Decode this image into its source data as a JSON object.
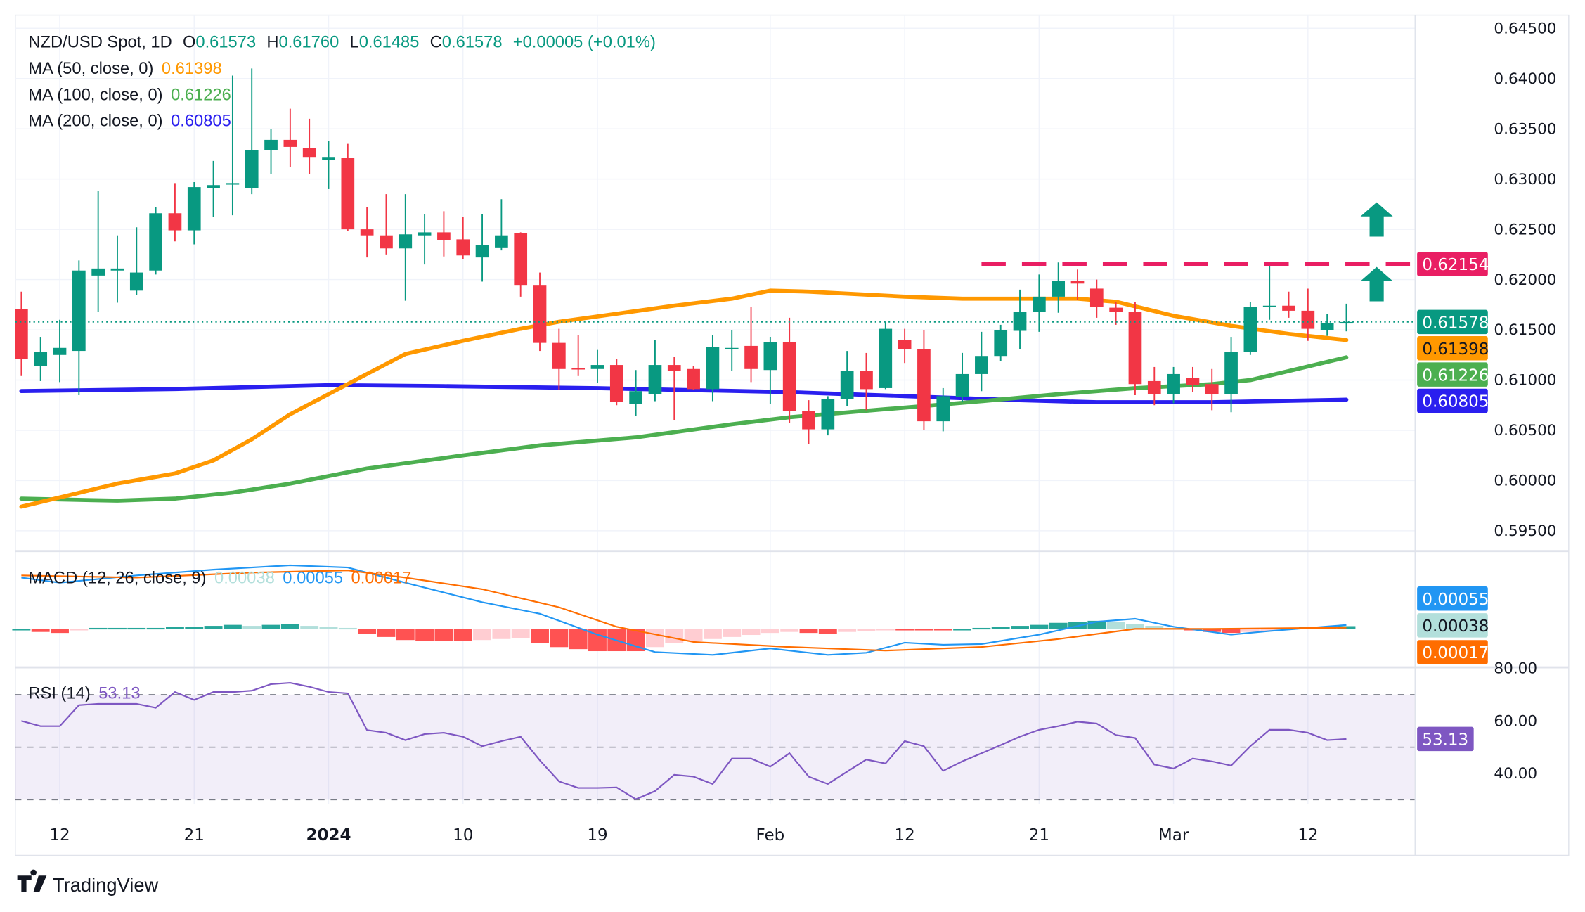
{
  "header": {
    "symbol": "NZD/USD Spot, 1D",
    "o_label": "O",
    "o": "0.61573",
    "h_label": "H",
    "h": "0.61760",
    "l_label": "L",
    "l": "0.61485",
    "c_label": "C",
    "c": "0.61578",
    "change": "+0.00005 (+0.01%)"
  },
  "legend": {
    "ma50": {
      "label": "MA (50, close, 0)",
      "value": "0.61398",
      "color": "#FF9800"
    },
    "ma100": {
      "label": "MA (100, close, 0)",
      "value": "0.61226",
      "color": "#4CAF50"
    },
    "ma200": {
      "label": "MA (200, close, 0)",
      "value": "0.60805",
      "color": "#2A1FEF"
    },
    "macd": {
      "label": "MACD (12, 26, close, 9)",
      "hist": "0.00038",
      "macd": "0.00055",
      "signal": "0.00017"
    },
    "rsi": {
      "label": "RSI (14)",
      "value": "53.13"
    }
  },
  "colors": {
    "up": "#089981",
    "down": "#F23645",
    "resistance": "#E91E63",
    "macd": "#2196F3",
    "signal": "#FF6D00",
    "rsi": "#7E57C2",
    "hist_up": "#26A69A",
    "hist_up_fade": "#B2DFDB",
    "hist_down": "#FF5252",
    "hist_down_fade": "#FFCDD2"
  },
  "price_axis": {
    "ticks": [
      "0.64500",
      "0.64000",
      "0.63500",
      "0.63000",
      "0.62500",
      "0.62000",
      "0.61500",
      "0.61000",
      "0.60500",
      "0.60000",
      "0.59500"
    ]
  },
  "badges": [
    {
      "value": "0.62154",
      "color": "#E91E63",
      "text_color": "#ffffff"
    },
    {
      "value": "0.61578",
      "color": "#089981",
      "text_color": "#ffffff"
    },
    {
      "value": "0.61398",
      "color": "#FF9800",
      "text_color": "#131722"
    },
    {
      "value": "0.61226",
      "color": "#4CAF50",
      "text_color": "#ffffff"
    },
    {
      "value": "0.60805",
      "color": "#2A1FEF",
      "text_color": "#ffffff"
    }
  ],
  "macd_badges": [
    {
      "value": "0.00055",
      "color": "#2196F3",
      "text_color": "#ffffff"
    },
    {
      "value": "0.00038",
      "color": "#B2DFDB",
      "text_color": "#131722"
    },
    {
      "value": "0.00017",
      "color": "#FF6D00",
      "text_color": "#ffffff"
    }
  ],
  "rsi_axis": {
    "ticks": [
      "80.00",
      "60.00",
      "40.00"
    ],
    "badge": {
      "value": "53.13",
      "color": "#7E57C2"
    }
  },
  "time_axis": [
    {
      "label": "12",
      "index": 2
    },
    {
      "label": "21",
      "index": 9
    },
    {
      "label": "2024",
      "index": 16,
      "bold": true
    },
    {
      "label": "10",
      "index": 23
    },
    {
      "label": "19",
      "index": 30
    },
    {
      "label": "Feb",
      "index": 39
    },
    {
      "label": "12",
      "index": 46
    },
    {
      "label": "21",
      "index": 53
    },
    {
      "label": "Mar",
      "index": 60
    },
    {
      "label": "12",
      "index": 67
    }
  ],
  "brand": "TradingView",
  "chart_data": {
    "type": "candlestick",
    "price_range": [
      0.593,
      0.6465
    ],
    "candles_ohlc": [
      [
        0.6171,
        0.6188,
        0.6104,
        0.6121
      ],
      [
        0.6114,
        0.6143,
        0.6099,
        0.6128
      ],
      [
        0.6125,
        0.616,
        0.6098,
        0.6132
      ],
      [
        0.6129,
        0.6219,
        0.6085,
        0.6209
      ],
      [
        0.6204,
        0.6288,
        0.6168,
        0.6211
      ],
      [
        0.6209,
        0.6244,
        0.6177,
        0.6211
      ],
      [
        0.6189,
        0.6252,
        0.6185,
        0.6207
      ],
      [
        0.6209,
        0.6272,
        0.6205,
        0.6266
      ],
      [
        0.6266,
        0.6296,
        0.6238,
        0.6249
      ],
      [
        0.6249,
        0.6297,
        0.6235,
        0.6292
      ],
      [
        0.6291,
        0.6318,
        0.6262,
        0.6294
      ],
      [
        0.6295,
        0.6403,
        0.6264,
        0.6296
      ],
      [
        0.6291,
        0.641,
        0.6285,
        0.6329
      ],
      [
        0.6329,
        0.635,
        0.6305,
        0.6339
      ],
      [
        0.6339,
        0.637,
        0.6312,
        0.6332
      ],
      [
        0.6331,
        0.636,
        0.6305,
        0.6322
      ],
      [
        0.6319,
        0.6338,
        0.629,
        0.6322
      ],
      [
        0.6321,
        0.6335,
        0.6248,
        0.625
      ],
      [
        0.625,
        0.6272,
        0.6222,
        0.6244
      ],
      [
        0.6244,
        0.6285,
        0.6225,
        0.6231
      ],
      [
        0.6231,
        0.6285,
        0.6179,
        0.6245
      ],
      [
        0.6244,
        0.6265,
        0.6215,
        0.6247
      ],
      [
        0.6247,
        0.6268,
        0.6223,
        0.6239
      ],
      [
        0.624,
        0.6262,
        0.622,
        0.6224
      ],
      [
        0.6222,
        0.6265,
        0.6198,
        0.6234
      ],
      [
        0.6232,
        0.628,
        0.6229,
        0.6244
      ],
      [
        0.6246,
        0.6247,
        0.6183,
        0.6194
      ],
      [
        0.6194,
        0.6207,
        0.6129,
        0.6137
      ],
      [
        0.6137,
        0.6151,
        0.609,
        0.6111
      ],
      [
        0.6112,
        0.6145,
        0.6104,
        0.6111
      ],
      [
        0.6111,
        0.613,
        0.6097,
        0.6115
      ],
      [
        0.6115,
        0.6121,
        0.6075,
        0.6078
      ],
      [
        0.6076,
        0.611,
        0.6064,
        0.6089
      ],
      [
        0.6086,
        0.614,
        0.6079,
        0.6115
      ],
      [
        0.6115,
        0.6123,
        0.606,
        0.6109
      ],
      [
        0.6111,
        0.6114,
        0.609,
        0.6091
      ],
      [
        0.6091,
        0.6145,
        0.6079,
        0.6133
      ],
      [
        0.6131,
        0.615,
        0.6109,
        0.6132
      ],
      [
        0.6134,
        0.6173,
        0.6098,
        0.6111
      ],
      [
        0.611,
        0.6143,
        0.6076,
        0.6138
      ],
      [
        0.6138,
        0.6162,
        0.6057,
        0.6069
      ],
      [
        0.6069,
        0.608,
        0.6036,
        0.6051
      ],
      [
        0.6051,
        0.6084,
        0.6045,
        0.6081
      ],
      [
        0.6081,
        0.6129,
        0.6074,
        0.6109
      ],
      [
        0.6109,
        0.6127,
        0.607,
        0.6091
      ],
      [
        0.6092,
        0.6158,
        0.6091,
        0.6151
      ],
      [
        0.614,
        0.6151,
        0.6117,
        0.6131
      ],
      [
        0.6131,
        0.615,
        0.605,
        0.6059
      ],
      [
        0.6059,
        0.6092,
        0.6049,
        0.6084
      ],
      [
        0.6083,
        0.6127,
        0.6078,
        0.6106
      ],
      [
        0.6106,
        0.6148,
        0.6089,
        0.6124
      ],
      [
        0.6124,
        0.6155,
        0.6119,
        0.615
      ],
      [
        0.6149,
        0.619,
        0.6131,
        0.6168
      ],
      [
        0.6168,
        0.6205,
        0.6148,
        0.6183
      ],
      [
        0.6183,
        0.6217,
        0.6167,
        0.6199
      ],
      [
        0.6199,
        0.621,
        0.618,
        0.6196
      ],
      [
        0.6191,
        0.62,
        0.6162,
        0.6173
      ],
      [
        0.6172,
        0.6178,
        0.6155,
        0.6168
      ],
      [
        0.6168,
        0.6178,
        0.6085,
        0.6096
      ],
      [
        0.6099,
        0.6113,
        0.6075,
        0.6086
      ],
      [
        0.6086,
        0.6113,
        0.6077,
        0.6106
      ],
      [
        0.6102,
        0.6113,
        0.6088,
        0.6095
      ],
      [
        0.6096,
        0.6111,
        0.607,
        0.6086
      ],
      [
        0.6086,
        0.6143,
        0.6068,
        0.6128
      ],
      [
        0.6128,
        0.6178,
        0.6125,
        0.6173
      ],
      [
        0.6173,
        0.6216,
        0.616,
        0.6174
      ],
      [
        0.6174,
        0.6188,
        0.6162,
        0.6169
      ],
      [
        0.6169,
        0.6191,
        0.6139,
        0.6151
      ],
      [
        0.615,
        0.6166,
        0.6144,
        0.6157
      ],
      [
        0.61573,
        0.6176,
        0.61485,
        0.61578
      ]
    ],
    "ma50": [
      [
        0,
        0.5974
      ],
      [
        5,
        0.5997
      ],
      [
        8,
        0.6007
      ],
      [
        10,
        0.602
      ],
      [
        12,
        0.6041
      ],
      [
        14,
        0.6066
      ],
      [
        16,
        0.6086
      ],
      [
        18,
        0.6106
      ],
      [
        20,
        0.6126
      ],
      [
        23,
        0.6139
      ],
      [
        26,
        0.6151
      ],
      [
        28,
        0.6158
      ],
      [
        31,
        0.6166
      ],
      [
        34,
        0.6174
      ],
      [
        37,
        0.6181
      ],
      [
        39,
        0.6189
      ],
      [
        41,
        0.6188
      ],
      [
        46,
        0.6183
      ],
      [
        49,
        0.6181
      ],
      [
        55,
        0.6181
      ],
      [
        57,
        0.6178
      ],
      [
        60,
        0.6164
      ],
      [
        63,
        0.6154
      ],
      [
        66,
        0.6146
      ],
      [
        69,
        0.61398
      ]
    ],
    "ma100": [
      [
        0,
        0.5982
      ],
      [
        5,
        0.598
      ],
      [
        8,
        0.5982
      ],
      [
        11,
        0.5988
      ],
      [
        14,
        0.5997
      ],
      [
        18,
        0.6012
      ],
      [
        23,
        0.6025
      ],
      [
        27,
        0.6035
      ],
      [
        32,
        0.6043
      ],
      [
        37,
        0.6056
      ],
      [
        40,
        0.6063
      ],
      [
        45,
        0.6071
      ],
      [
        50,
        0.6079
      ],
      [
        54,
        0.6086
      ],
      [
        58,
        0.6092
      ],
      [
        62,
        0.6096
      ],
      [
        64,
        0.61
      ],
      [
        66,
        0.6109
      ],
      [
        69,
        0.61226
      ]
    ],
    "ma200": [
      [
        0,
        0.6089
      ],
      [
        8,
        0.6091
      ],
      [
        16,
        0.6095
      ],
      [
        22,
        0.6094
      ],
      [
        30,
        0.6092
      ],
      [
        40,
        0.6088
      ],
      [
        46,
        0.6084
      ],
      [
        52,
        0.608
      ],
      [
        56,
        0.6078
      ],
      [
        62,
        0.6078
      ],
      [
        69,
        0.60805
      ]
    ],
    "resistance": {
      "value": 0.62154,
      "from_index": 50
    },
    "macd_range": [
      -0.0053,
      0.0104
    ],
    "macd_line": [
      [
        0,
        0.0071
      ],
      [
        2,
        0.0064
      ],
      [
        6,
        0.0074
      ],
      [
        10,
        0.0082
      ],
      [
        14,
        0.0088
      ],
      [
        17,
        0.0085
      ],
      [
        20,
        0.0064
      ],
      [
        24,
        0.0037
      ],
      [
        27,
        0.0021
      ],
      [
        30,
        -0.0008
      ],
      [
        33,
        -0.0032
      ],
      [
        36,
        -0.0036
      ],
      [
        39,
        -0.0027
      ],
      [
        42,
        -0.0036
      ],
      [
        44,
        -0.0033
      ],
      [
        46,
        -0.0019
      ],
      [
        48,
        -0.0022
      ],
      [
        50,
        -0.0021
      ],
      [
        53,
        -0.0008
      ],
      [
        56,
        0.001
      ],
      [
        58,
        0.0014
      ],
      [
        60,
        0.0003
      ],
      [
        63,
        -0.0008
      ],
      [
        65,
        -0.0003
      ],
      [
        69,
        0.00055
      ]
    ],
    "signal_line": [
      [
        0,
        0.0074
      ],
      [
        6,
        0.0071
      ],
      [
        12,
        0.0078
      ],
      [
        17,
        0.0081
      ],
      [
        20,
        0.0071
      ],
      [
        24,
        0.0055
      ],
      [
        28,
        0.003
      ],
      [
        31,
        0.0003
      ],
      [
        35,
        -0.0018
      ],
      [
        40,
        -0.0025
      ],
      [
        45,
        -0.003
      ],
      [
        50,
        -0.0025
      ],
      [
        54,
        -0.0014
      ],
      [
        58,
        0.0
      ],
      [
        62,
        0.0
      ],
      [
        66,
        0.0001
      ],
      [
        69,
        0.00017
      ]
    ],
    "histogram": [
      0,
      -0.00042,
      -0.00056,
      -0.00014,
      0.00014,
      0.00014,
      0.00014,
      0.00014,
      0.00028,
      0.00028,
      0.00042,
      0.00056,
      0.00042,
      0.00056,
      0.0007,
      0.00042,
      0.00028,
      0.00014,
      -0.0007,
      -0.00112,
      -0.00154,
      -0.00168,
      -0.00168,
      -0.00168,
      -0.00154,
      -0.0014,
      -0.00126,
      -0.00196,
      -0.00252,
      -0.0028,
      -0.00308,
      -0.00308,
      -0.00308,
      -0.00252,
      -0.00196,
      -0.00168,
      -0.0014,
      -0.00112,
      -0.00084,
      -0.00056,
      -0.00042,
      -0.00056,
      -0.0007,
      -0.00042,
      -0.00028,
      -0.00014,
      -0.00014,
      -0.00014,
      -0.00014,
      0,
      0.00014,
      0.00028,
      0.00042,
      0.00056,
      0.00084,
      0.00098,
      0.00112,
      0.00098,
      0.0007,
      0.00042,
      0.00014,
      -0.00014,
      -0.00042,
      -0.00056,
      -0.00042,
      -0.00028,
      0.00014,
      0.00028,
      0.00028,
      0.00038
    ],
    "rsi_band": [
      30,
      70
    ],
    "rsi_mid": 50,
    "rsi": [
      60,
      58,
      58,
      66,
      66.5,
      66.5,
      66.5,
      65,
      71,
      68,
      71,
      71,
      71.5,
      74,
      74.5,
      73,
      71,
      70.5,
      56.5,
      55.5,
      52.7,
      55,
      55.5,
      54,
      50.4,
      52.3,
      54,
      45,
      37,
      34.5,
      34.5,
      34.7,
      30.2,
      33.3,
      39.5,
      38.8,
      36,
      45.7,
      45.7,
      42.6,
      47.7,
      38.8,
      36,
      40.7,
      45.3,
      43.8,
      52.3,
      50.4,
      41,
      44.6,
      47.7,
      50.8,
      54,
      56.6,
      58,
      59.7,
      59,
      54.6,
      53.5,
      43.4,
      41.9,
      45.7,
      44.6,
      43,
      50.4,
      56.6,
      56.6,
      55.5,
      52.7,
      53.13
    ]
  }
}
